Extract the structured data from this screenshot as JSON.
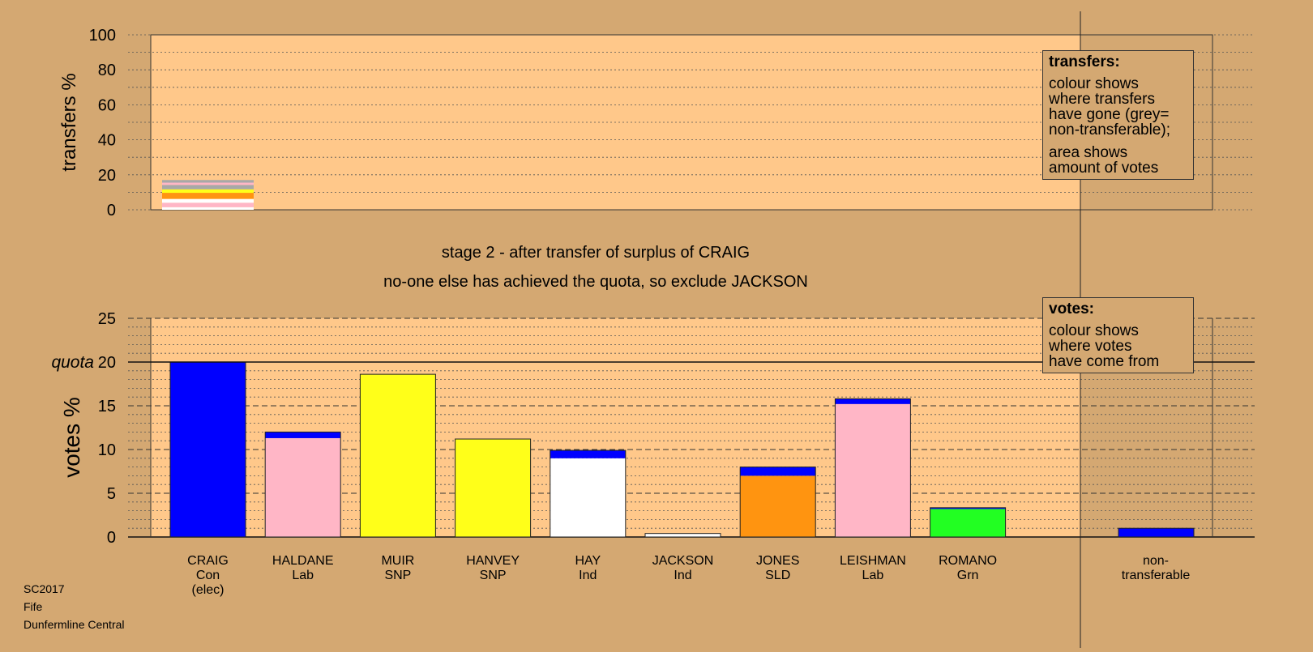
{
  "chart_data": [
    {
      "type": "bar",
      "ylabel": "transfers %",
      "ylim": [
        0,
        100
      ],
      "yticks": [
        0,
        20,
        40,
        60,
        80,
        100
      ],
      "stacks": [
        {
          "category": "CRAIG",
          "segments": [
            {
              "value": 1.5,
              "color": "#FFFFFF"
            },
            {
              "value": 2.5,
              "color": "#FFB6C6"
            },
            {
              "value": 2.2,
              "color": "#FFFFFF"
            },
            {
              "value": 3.5,
              "color": "#FF9410"
            },
            {
              "value": 2.0,
              "color": "#FFFF19"
            },
            {
              "value": 2.5,
              "color": "#A8A8A8"
            },
            {
              "value": 1.3,
              "color": "#FFB6C6"
            },
            {
              "value": 1.5,
              "color": "#A8A8A8"
            }
          ]
        }
      ]
    },
    {
      "type": "bar",
      "ylabel": "votes %",
      "ylim": [
        0,
        25
      ],
      "yticks": [
        0,
        5,
        10,
        15,
        20,
        25
      ],
      "quota": {
        "value": 20,
        "label": "quota"
      },
      "categories": [
        {
          "name": "CRAIG",
          "party": "Con",
          "extra": "(elec)"
        },
        {
          "name": "HALDANE",
          "party": "Lab"
        },
        {
          "name": "MUIR",
          "party": "SNP"
        },
        {
          "name": "HANVEY",
          "party": "SNP"
        },
        {
          "name": "HAY",
          "party": "Ind"
        },
        {
          "name": "JACKSON",
          "party": "Ind"
        },
        {
          "name": "JONES",
          "party": "SLD"
        },
        {
          "name": "LEISHMAN",
          "party": "Lab"
        },
        {
          "name": "ROMANO",
          "party": "Grn"
        }
      ],
      "stacks": [
        [
          {
            "value": 20.0,
            "color": "#0000FF"
          }
        ],
        [
          {
            "value": 11.3,
            "color": "#FFB6C6"
          },
          {
            "value": 0.7,
            "color": "#0000FF"
          }
        ],
        [
          {
            "value": 18.6,
            "color": "#FFFF19"
          }
        ],
        [
          {
            "value": 11.2,
            "color": "#FFFF19"
          }
        ],
        [
          {
            "value": 9.0,
            "color": "#FFFFFF"
          },
          {
            "value": 0.9,
            "color": "#0000FF"
          }
        ],
        [
          {
            "value": 0.4,
            "color": "#FFFFFF"
          }
        ],
        [
          {
            "value": 7.0,
            "color": "#FF9410"
          },
          {
            "value": 1.0,
            "color": "#0000FF"
          }
        ],
        [
          {
            "value": 15.2,
            "color": "#FFB6C6"
          },
          {
            "value": 0.6,
            "color": "#0000FF"
          }
        ],
        [
          {
            "value": 3.2,
            "color": "#22FF22"
          },
          {
            "value": 0.15,
            "color": "#0000FF"
          }
        ]
      ],
      "nontransferable": {
        "label1": "non-",
        "label2": "transferable",
        "value": 1.0,
        "color": "#0000FF"
      }
    }
  ],
  "titles": {
    "line1": "stage 2 - after transfer of surplus of CRAIG",
    "line2": "no-one else has achieved the quota, so exclude JACKSON"
  },
  "legend_transfers": {
    "heading": "transfers:",
    "lines_a": [
      "colour shows",
      "where transfers",
      "have gone (grey=",
      "non-transferable);"
    ],
    "lines_b": [
      "area shows",
      "amount of votes"
    ]
  },
  "legend_votes": {
    "heading": "votes:",
    "lines": [
      "colour shows",
      "where votes",
      "have come from"
    ]
  },
  "footer": {
    "line1": "SC2017",
    "line2": "Fife",
    "line3": "Dunfermline Central"
  },
  "colors": {
    "background": "#D4A872",
    "plot_area": "#FFC88A",
    "shaded_area": "#D4A872"
  }
}
